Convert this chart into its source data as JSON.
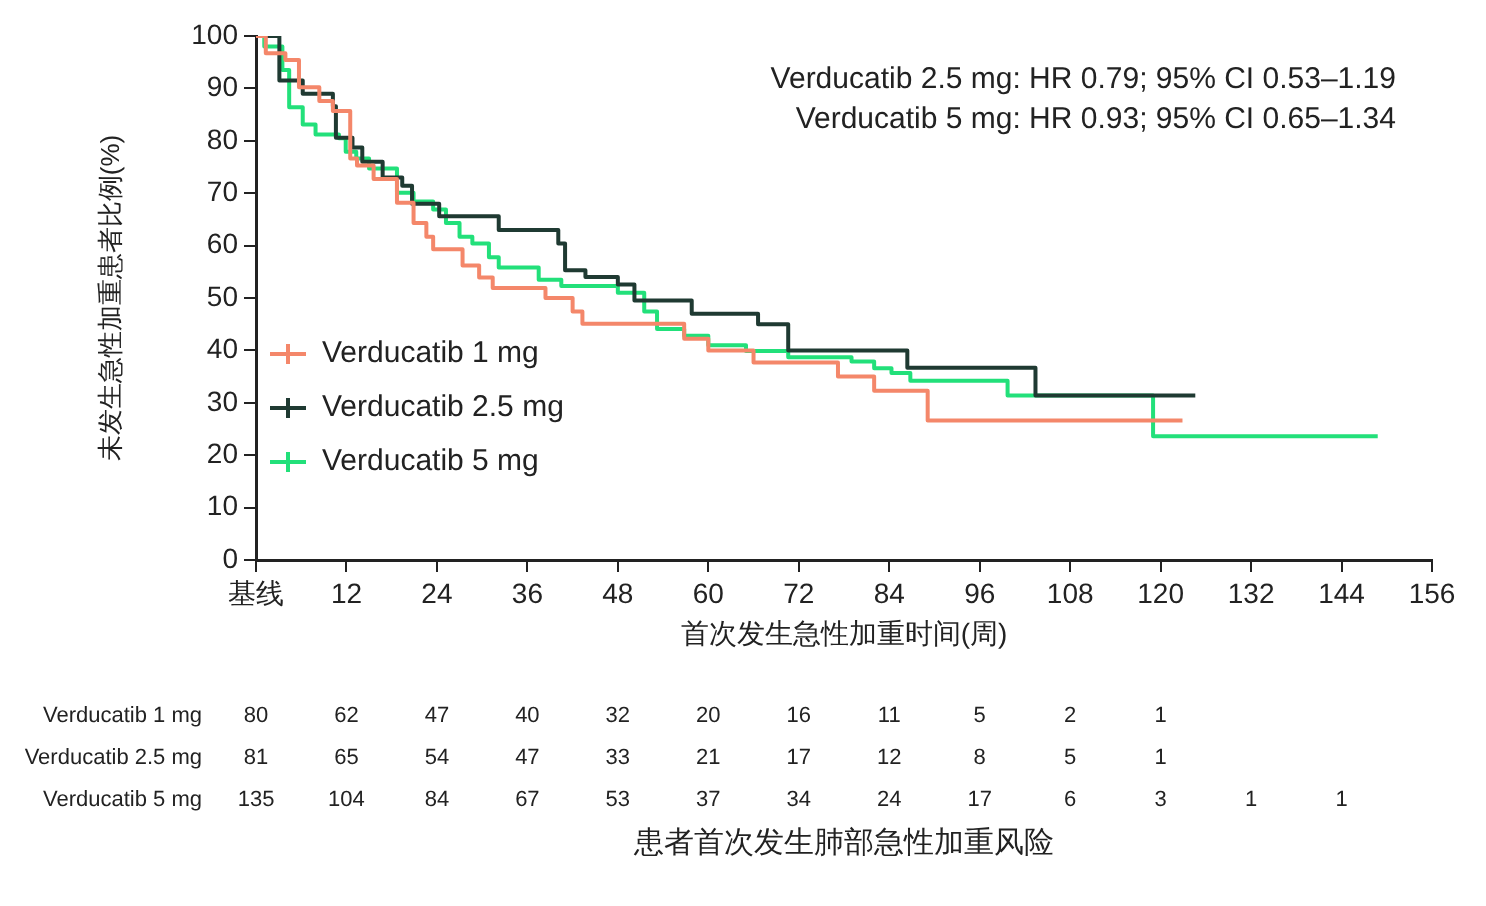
{
  "chart_data": {
    "type": "step",
    "xlabel": "首次发生急性加重时间(周)",
    "ylabel": "未发生急性加重患者比例(%)",
    "xlim": [
      0,
      156
    ],
    "xticks": [
      {
        "value": 0,
        "label": "基线"
      },
      12,
      24,
      36,
      48,
      60,
      72,
      84,
      96,
      108,
      120,
      132,
      144,
      156
    ],
    "ylim": [
      0,
      100
    ],
    "yticks": [
      0,
      10,
      20,
      30,
      40,
      50,
      60,
      70,
      80,
      90,
      100
    ],
    "grid": false,
    "legend": "bottom left",
    "series": [
      {
        "name": "Verducatib 1 mg",
        "color": "#f4876a",
        "x": [
          0,
          1.3,
          3.9,
          5.7,
          8.4,
          10.2,
          12.5,
          13.4,
          15.6,
          18.7,
          20.9,
          22.6,
          23.5,
          27.4,
          29.6,
          31.4,
          38.4,
          42,
          43.3,
          56.8,
          60,
          66,
          77.2,
          82,
          89.1,
          122.9
        ],
        "values": [
          100,
          96.7,
          95.4,
          90.2,
          87.6,
          85.7,
          76.6,
          75.3,
          72.7,
          68.2,
          64.3,
          61.7,
          59.3,
          56.2,
          53.9,
          51.9,
          50,
          47.4,
          45.1,
          42.2,
          40,
          37.7,
          35,
          32.3,
          26.6,
          26.6
        ]
      },
      {
        "name": "Verducatib 2.5 mg",
        "color": "#1f3a32",
        "x": [
          0,
          3.1,
          6.2,
          10.2,
          10.6,
          12.8,
          14.1,
          16.8,
          19.4,
          20.7,
          24.3,
          32.2,
          40.1,
          41,
          43.7,
          48,
          50.2,
          57.8,
          66.6,
          70.6,
          86.4,
          103.4,
          124.6
        ],
        "values": [
          100,
          91.5,
          89,
          86.6,
          80.6,
          78.7,
          76,
          73,
          71.4,
          68,
          65.6,
          63,
          60.4,
          55.3,
          54,
          52.6,
          49.5,
          47,
          45,
          40,
          36.7,
          31.4,
          31.4
        ]
      },
      {
        "name": "Verducatib 5 mg",
        "color": "#22e07a",
        "x": [
          0,
          1.1,
          3.5,
          4.4,
          6.2,
          7.9,
          11,
          11.9,
          13.3,
          15,
          18.7,
          20.9,
          23.5,
          25.2,
          27,
          28.7,
          30.9,
          32.2,
          37.5,
          40.5,
          48,
          51.5,
          53.2,
          56.8,
          60,
          65,
          70.6,
          79,
          82,
          84.3,
          86.8,
          99.7,
          119,
          148.8
        ],
        "values": [
          100,
          98,
          93.5,
          86.4,
          83.1,
          81.2,
          80.5,
          77.9,
          76.6,
          74.7,
          70.1,
          68.4,
          66.9,
          64.3,
          61.7,
          60.4,
          57.8,
          55.8,
          53.5,
          52.3,
          51,
          47.4,
          44.1,
          42.8,
          41,
          39.9,
          38.7,
          37.9,
          36.6,
          35.7,
          34.2,
          31.4,
          23.6,
          23.6
        ]
      }
    ],
    "annotations": [
      "Verducatib 2.5 mg: HR 0.79; 95% CI 0.53–1.19",
      "Verducatib 5 mg: HR 0.93; 95% CI 0.65–1.34",
      "80 62 47 40 32 20 16 11 5 2 1",
      "81 65 54 47 33 21 17 12 8 5 1",
      "135 104 84 67 53 37 34 24 17 6 3 1 1",
      "患者首次发生肺部急性加重风险"
    ]
  }
}
